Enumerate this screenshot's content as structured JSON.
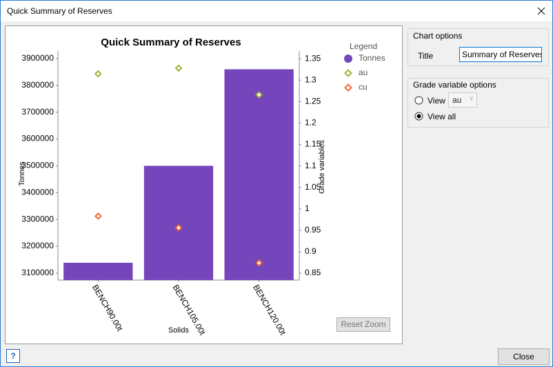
{
  "window": {
    "title": "Quick Summary of Reserves"
  },
  "chart_data": {
    "type": "bar",
    "title": "Quick Summary of Reserves",
    "x_label": "Solids",
    "y_label": "Tonnes",
    "y2_label": "Grade variables",
    "legend_title": "Legend",
    "categories": [
      "BENCH90.00t",
      "BENCH105.00t",
      "BENCH120.00t"
    ],
    "series": [
      {
        "name": "Tonnes",
        "type": "bar",
        "color": "#7545bb",
        "values": [
          3138600,
          3500000,
          3860000
        ]
      },
      {
        "name": "au",
        "type": "scatter",
        "axis": "y2",
        "color": "#9ab53a",
        "values": [
          1.315,
          1.328,
          1.266
        ]
      },
      {
        "name": "cu",
        "type": "scatter",
        "axis": "y2",
        "color": "#f06a35",
        "values": [
          0.983,
          0.956,
          0.874
        ]
      }
    ],
    "ylim": [
      3074000,
      3928000
    ],
    "yticks": [
      3100000,
      3200000,
      3300000,
      3400000,
      3500000,
      3600000,
      3700000,
      3800000,
      3900000
    ],
    "y2lim": [
      0.834,
      1.368
    ],
    "y2ticks": [
      0.85,
      0.9,
      0.95,
      1,
      1.05,
      1.1,
      1.15,
      1.2,
      1.25,
      1.3,
      1.35
    ],
    "grid": false,
    "legend": "right"
  },
  "options": {
    "chart_options": {
      "heading": "Chart options",
      "title_label": "Title",
      "title_value": "Summary of Reserves"
    },
    "grade_options": {
      "heading": "Grade variable options",
      "view_label": "View",
      "view_value": "au",
      "view_all_label": "View all"
    }
  },
  "buttons": {
    "reset_zoom": "Reset Zoom",
    "close": "Close",
    "help": "?"
  }
}
